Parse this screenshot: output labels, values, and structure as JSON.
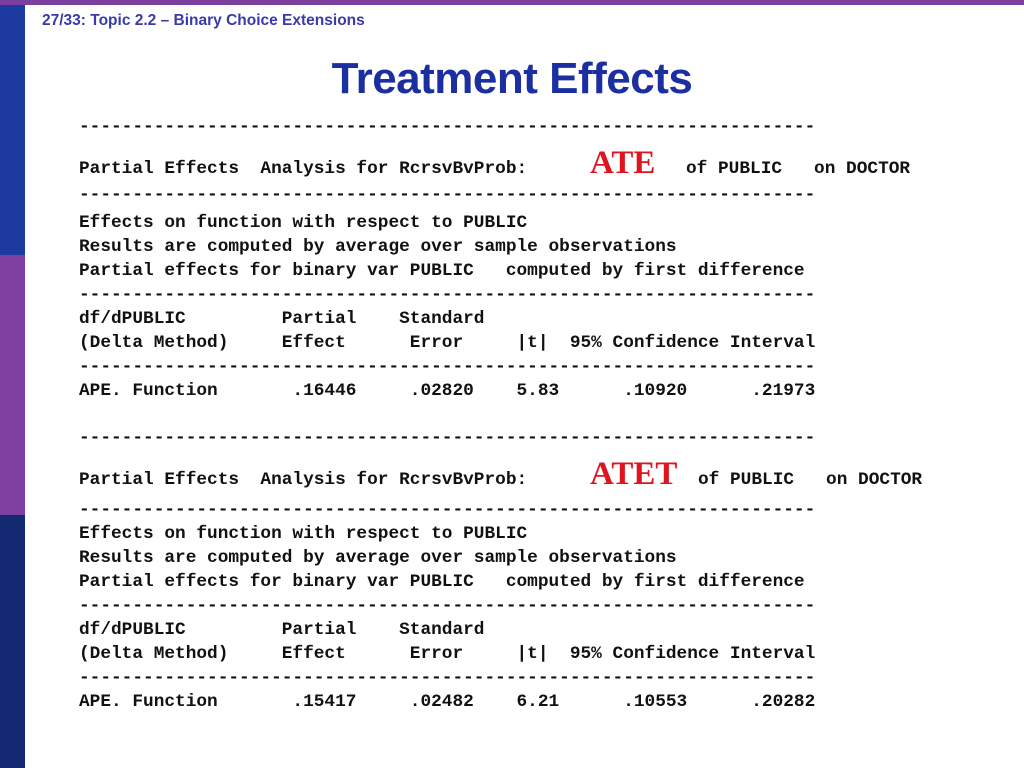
{
  "header": {
    "label": "27/33: Topic 2.2 – Binary Choice Extensions"
  },
  "title": "Treatment Effects",
  "dashes": "---------------------------------------------------------------------",
  "ate_block": {
    "heading_pre": "Partial Effects  Analysis for RcrsvBvProb:",
    "tag": "ATE",
    "heading_post": "of PUBLIC   on DOCTOR",
    "effects_line": "Effects on function with respect to PUBLIC",
    "results_line": "Results are computed by average over sample observations",
    "partial_line": "Partial effects for binary var PUBLIC   computed by first difference",
    "col_header_1": "df/dPUBLIC         Partial    Standard",
    "col_header_2": "(Delta Method)     Effect      Error     |t|  95% Confidence Interval",
    "row": "APE. Function       .16446     .02820    5.83      .10920      .21973"
  },
  "atet_block": {
    "heading_pre": "Partial Effects  Analysis for RcrsvBvProb:",
    "tag": "ATET",
    "heading_post": "of PUBLIC   on DOCTOR",
    "effects_line": "Effects on function with respect to PUBLIC",
    "results_line": "Results are computed by average over sample observations",
    "partial_line": "Partial effects for binary var PUBLIC   computed by first difference",
    "col_header_1": "df/dPUBLIC         Partial    Standard",
    "col_header_2": "(Delta Method)     Effect      Error     |t|  95% Confidence Interval",
    "row": "APE. Function       .15417     .02482    6.21      .10553      .20282"
  },
  "colors": {
    "sidebar_blue": "#1c3aa0",
    "sidebar_purple": "#7e3fa0",
    "sidebar_navy": "#132a72",
    "title": "#1c2fa0",
    "tag": "#e0141e"
  }
}
